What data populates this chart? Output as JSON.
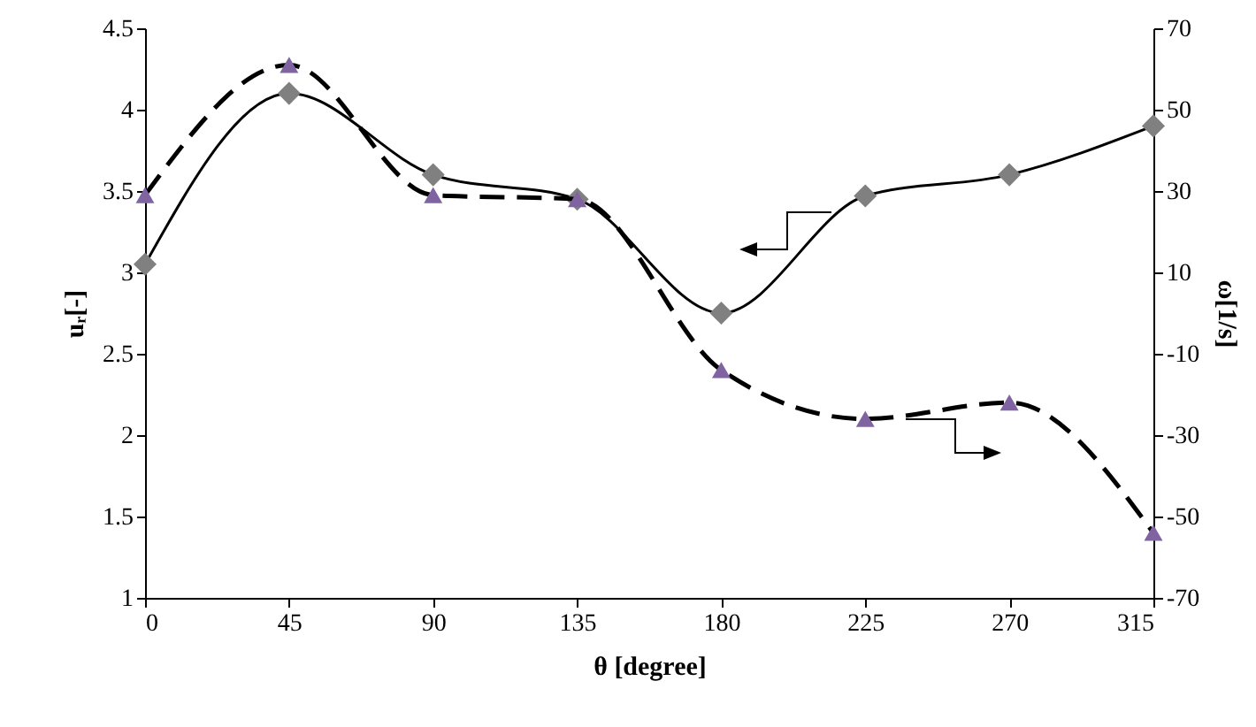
{
  "chart_data": {
    "type": "line",
    "xlabel": "θ [degree]",
    "ylabel": "uᵣ[-]",
    "y2label": "ω[1/s]",
    "x": [
      0,
      45,
      90,
      135,
      180,
      225,
      270,
      315
    ],
    "series": [
      {
        "color": "#808080",
        "marker": "diamond",
        "line_style": "solid",
        "values": [
          3.05,
          4.1,
          3.6,
          3.45,
          2.75,
          3.47,
          3.6,
          3.9
        ]
      },
      {
        "color": "#8064a2",
        "marker": "triangle",
        "line_style": "dashed",
        "axis": "y2",
        "values": [
          29,
          61,
          29,
          28,
          -14,
          -26,
          -22,
          -54
        ]
      }
    ],
    "xlim": [
      0,
      315
    ],
    "xticks": [
      0,
      45,
      90,
      135,
      180,
      225,
      270,
      315
    ],
    "ylim": [
      1,
      4.5
    ],
    "yticks": [
      1,
      1.5,
      2,
      2.5,
      3,
      3.5,
      4,
      4.5
    ],
    "y2lim": [
      -70,
      70
    ],
    "y2ticks": [
      -70,
      -50,
      -30,
      -10,
      10,
      30,
      50,
      70
    ],
    "grid": false
  }
}
